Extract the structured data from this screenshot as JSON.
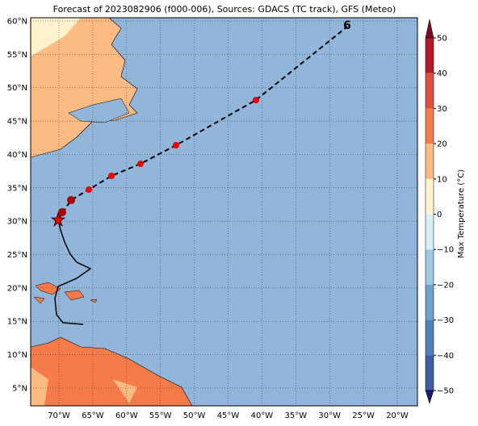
{
  "title": "Forecast of 2023082906 (f000-006), Sources: GDACS (TC track), GFS (Meteo)",
  "lat_labels": [
    "60°N",
    "55°N",
    "50°N",
    "45°N",
    "40°N",
    "35°N",
    "30°N",
    "25°N",
    "20°N",
    "15°N",
    "10°N",
    "5°N"
  ],
  "lon_labels": [
    "70°W",
    "65°W",
    "60°W",
    "55°W",
    "50°W",
    "45°W",
    "40°W",
    "35°W",
    "30°W",
    "25°W",
    "20°W"
  ],
  "colorbar": {
    "title": "Max Temperature (°C)",
    "labels": [
      "50",
      "40",
      "30",
      "20",
      "10",
      "0",
      "−10",
      "−20",
      "−30",
      "−40",
      "−50"
    ]
  }
}
